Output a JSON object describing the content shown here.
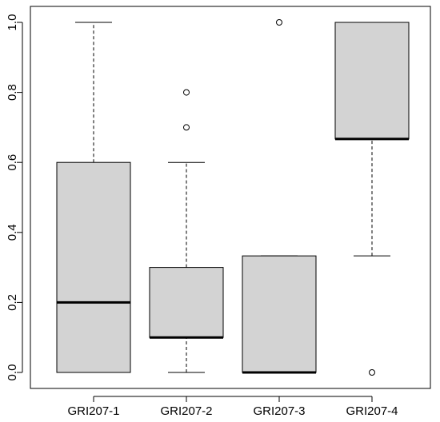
{
  "chart_data": {
    "type": "boxplot",
    "title": "",
    "xlabel": "",
    "ylabel": "",
    "ylim": [
      0,
      1
    ],
    "yticks": [
      "0.0",
      "0.2",
      "0.4",
      "0.6",
      "0.8",
      "1.0"
    ],
    "grid": false,
    "categories": [
      "GRI207-1",
      "GRI207-2",
      "GRI207-3",
      "GRI207-4"
    ],
    "boxes": [
      {
        "whisker_low": 0.0,
        "q1": 0.0,
        "median": 0.2,
        "q3": 0.6,
        "whisker_high": 1.0,
        "outliers": []
      },
      {
        "whisker_low": 0.0,
        "q1": 0.1,
        "median": 0.1,
        "q3": 0.3,
        "whisker_high": 0.6,
        "outliers": [
          0.7,
          0.8
        ]
      },
      {
        "whisker_low": 0.0,
        "q1": 0.0,
        "median": 0.0,
        "q3": 0.333,
        "whisker_high": 0.333,
        "outliers": [
          1.0
        ]
      },
      {
        "whisker_low": 0.333,
        "q1": 0.667,
        "median": 0.667,
        "q3": 1.0,
        "whisker_high": 1.0,
        "outliers": [
          0.0
        ]
      }
    ],
    "box_fill": "#d3d3d3",
    "line_color": "#000000"
  }
}
